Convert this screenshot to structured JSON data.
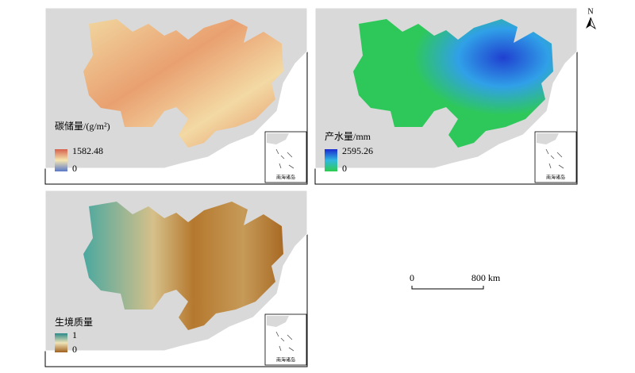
{
  "panels": [
    {
      "legend": {
        "title": "碳储量/(g/m²)",
        "max": "1582.48",
        "min": "0"
      },
      "inset_label": "南海诸岛"
    },
    {
      "legend": {
        "title": "产水量/mm",
        "max": "2595.26",
        "min": "0"
      },
      "inset_label": "南海诸岛"
    },
    {
      "legend": {
        "title": "生境质量",
        "max": "1",
        "min": "0"
      },
      "inset_label": "南海诸岛"
    }
  ],
  "scale_bar": {
    "start": "0",
    "end": "800 km"
  },
  "north_arrow": "N"
}
